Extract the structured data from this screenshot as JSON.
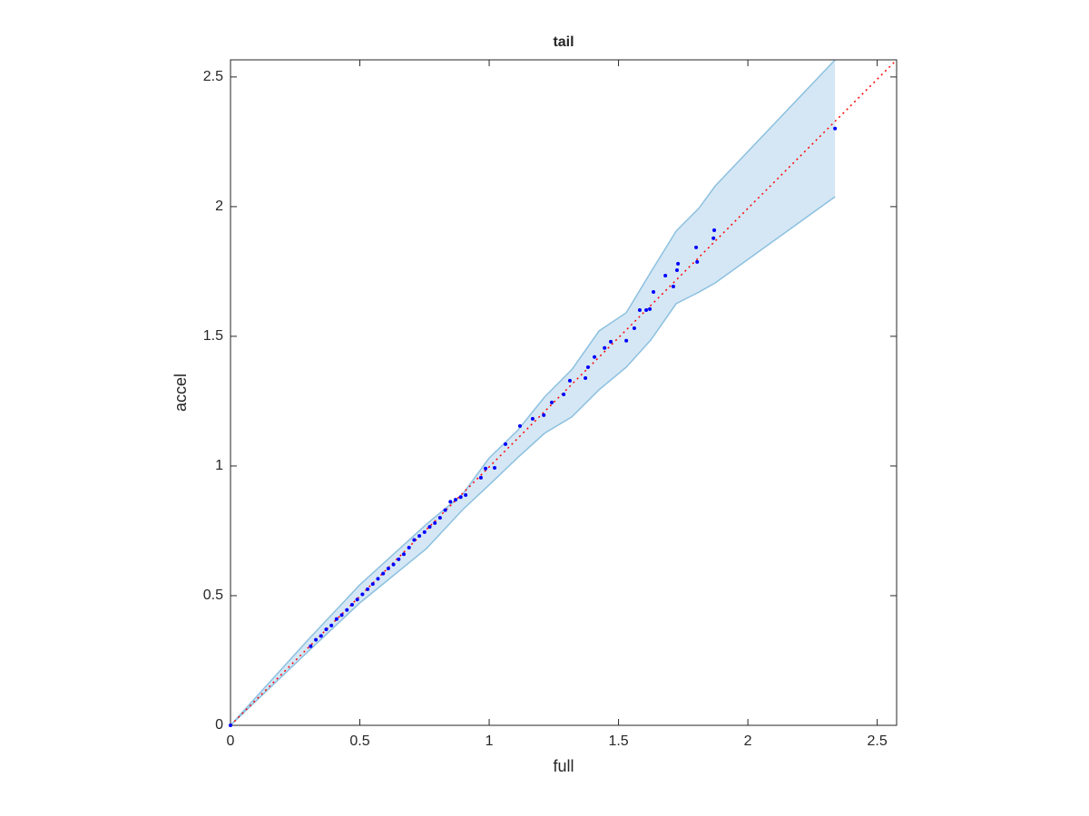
{
  "chart_data": {
    "type": "scatter",
    "title": "tail",
    "xlabel": "full",
    "ylabel": "accel",
    "xlim": [
      0,
      2.575
    ],
    "ylim": [
      0,
      2.566
    ],
    "xticks": [
      0,
      0.5,
      1,
      1.5,
      2,
      2.5
    ],
    "yticks": [
      0,
      0.5,
      1,
      1.5,
      2,
      2.5
    ],
    "points": {
      "color": "#0000ff",
      "x": [
        0,
        0.31,
        0.33,
        0.35,
        0.37,
        0.39,
        0.41,
        0.43,
        0.45,
        0.47,
        0.49,
        0.51,
        0.53,
        0.55,
        0.57,
        0.59,
        0.61,
        0.63,
        0.65,
        0.67,
        0.69,
        0.71,
        0.73,
        0.75,
        0.77,
        0.79,
        0.81,
        0.83,
        0.85,
        0.87,
        0.89,
        0.909,
        0.968,
        0.986,
        1.021,
        1.063,
        1.119,
        1.168,
        1.211,
        1.242,
        1.288,
        1.312,
        1.372,
        1.382,
        1.407,
        1.446,
        1.47,
        1.53,
        1.561,
        1.582,
        1.607,
        1.621,
        1.635,
        1.681,
        1.712,
        1.726,
        1.73,
        1.8,
        1.804,
        1.867,
        1.87,
        2.337
      ],
      "y": [
        0,
        0.305,
        0.33,
        0.345,
        0.37,
        0.385,
        0.41,
        0.425,
        0.445,
        0.465,
        0.485,
        0.505,
        0.525,
        0.545,
        0.565,
        0.585,
        0.605,
        0.62,
        0.64,
        0.66,
        0.685,
        0.715,
        0.73,
        0.745,
        0.765,
        0.78,
        0.8,
        0.83,
        0.862,
        0.87,
        0.88,
        0.888,
        0.955,
        0.99,
        0.993,
        1.084,
        1.154,
        1.182,
        1.196,
        1.245,
        1.276,
        1.329,
        1.339,
        1.381,
        1.42,
        1.455,
        1.479,
        1.483,
        1.531,
        1.601,
        1.601,
        1.605,
        1.671,
        1.734,
        1.692,
        1.755,
        1.78,
        1.843,
        1.787,
        1.878,
        1.909,
        2.301
      ]
    },
    "band": {
      "fill": "#d5e7f4",
      "stroke": "#8cc0e0",
      "x": [
        0,
        0.302,
        0.5,
        0.758,
        0.898,
        1.0,
        1.109,
        1.214,
        1.319,
        1.425,
        1.53,
        1.625,
        1.723,
        1.81,
        1.874,
        2.337
      ],
      "upper": [
        0,
        0.332,
        0.542,
        0.776,
        0.892,
        1.031,
        1.136,
        1.266,
        1.371,
        1.521,
        1.591,
        1.748,
        1.906,
        1.993,
        2.08,
        2.566
      ],
      "lower": [
        0,
        0.287,
        0.472,
        0.682,
        0.832,
        0.927,
        1.031,
        1.126,
        1.189,
        1.294,
        1.381,
        1.486,
        1.626,
        1.67,
        1.706,
        2.038
      ]
    },
    "reference_line": {
      "color": "#ff0000",
      "x": [
        0,
        2.575
      ],
      "y": [
        0,
        2.566
      ]
    }
  }
}
